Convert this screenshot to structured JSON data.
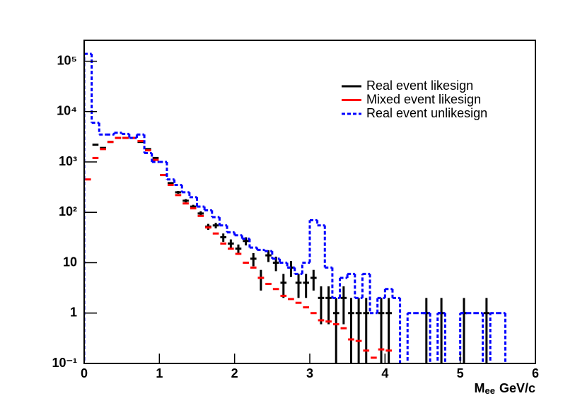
{
  "chart_data": {
    "type": "histogram",
    "xlabel": [
      "M",
      "ee",
      "GeV/c"
    ],
    "bins": [
      0,
      0.1,
      0.2,
      0.3,
      0.4,
      0.5,
      0.6,
      0.7,
      0.8,
      0.9,
      1,
      1.1,
      1.2,
      1.3,
      1.4,
      1.5,
      1.6,
      1.7,
      1.8,
      1.9,
      2,
      2.1,
      2.2,
      2.3,
      2.4,
      2.5,
      2.6,
      2.7,
      2.8,
      2.9,
      3,
      3.1,
      3.2,
      3.3,
      3.4,
      3.5,
      3.6,
      3.7,
      3.8,
      3.9,
      4,
      4.1,
      4.2,
      4.3,
      4.4,
      4.5,
      4.6,
      4.7,
      4.8,
      4.9,
      5,
      5.1,
      5.2,
      5.3,
      5.4,
      5.5,
      5.6,
      5.7,
      5.8,
      5.9,
      6
    ],
    "xlim": [
      0,
      6
    ],
    "xticks": [
      0,
      1,
      2,
      3,
      4,
      5,
      6
    ],
    "ylim": [
      0.1,
      260000
    ],
    "log_y": true,
    "yticks": [
      {
        "value": 0.1,
        "label": "10⁻¹"
      },
      1,
      10,
      {
        "value": 100,
        "label": "10²"
      },
      {
        "value": 1000,
        "label": "10³"
      },
      {
        "value": 10000,
        "label": "10⁴"
      },
      {
        "value": 100000,
        "label": "10⁵"
      }
    ],
    "legend": "top-right",
    "series": [
      {
        "name": "Real event likesign",
        "color": "#000000",
        "style": "points",
        "values": [
          null,
          2200,
          1900,
          2500,
          3000,
          3000,
          3000,
          2500,
          1800,
          1200,
          550,
          380,
          250,
          170,
          130,
          95,
          52,
          55,
          32,
          24,
          19,
          27,
          12,
          5,
          14,
          10,
          4,
          8,
          4,
          4,
          5,
          2,
          2,
          1,
          2,
          1,
          1,
          1,
          null,
          1,
          1,
          null,
          null,
          null,
          null,
          1,
          null,
          1,
          null,
          null,
          1,
          null,
          null,
          1,
          null,
          null,
          null,
          null,
          null,
          null
        ],
        "errors": [
          null,
          47,
          44,
          50,
          55,
          55,
          55,
          50,
          42,
          35,
          23,
          19,
          16,
          13,
          11,
          10,
          7,
          7,
          6,
          5,
          4,
          5,
          3.5,
          2.2,
          3.7,
          3.2,
          2,
          2.8,
          2,
          2,
          2.2,
          1.4,
          1.4,
          1,
          1.4,
          1,
          1,
          1,
          null,
          1,
          1,
          null,
          null,
          null,
          null,
          1,
          null,
          1,
          null,
          null,
          1,
          null,
          null,
          1,
          null,
          null,
          null,
          null,
          null,
          null
        ]
      },
      {
        "name": "Mixed event likesign",
        "color": "#ff0000",
        "style": "points",
        "values": [
          450,
          1200,
          1800,
          2500,
          3000,
          3000,
          3000,
          2600,
          1700,
          1100,
          550,
          350,
          220,
          150,
          120,
          85,
          50,
          38,
          24,
          19,
          15,
          10,
          8,
          5,
          3.8,
          3,
          2.2,
          1.9,
          1.6,
          1.3,
          1.0,
          0.72,
          0.68,
          0.6,
          0.5,
          0.3,
          0.28,
          0.18,
          0.13,
          0.19,
          0.18,
          null,
          null,
          null,
          null,
          null,
          null,
          null,
          null,
          null,
          null,
          null,
          null,
          null,
          null,
          null,
          null,
          null,
          null,
          null
        ]
      },
      {
        "name": "Real event unlikesign",
        "color": "#0000ff",
        "style": "step",
        "values": [
          140000,
          6000,
          3500,
          3500,
          3800,
          3600,
          3000,
          3500,
          1500,
          1000,
          1000,
          450,
          350,
          250,
          200,
          130,
          110,
          80,
          55,
          40,
          35,
          30,
          20,
          18,
          17,
          12,
          10,
          8,
          6,
          10,
          70,
          55,
          8,
          2,
          5,
          6,
          2,
          6,
          1,
          2,
          3,
          2,
          null,
          1,
          1,
          1,
          null,
          1,
          null,
          null,
          1,
          1,
          1,
          null,
          1,
          1,
          null,
          null,
          null,
          null
        ]
      }
    ]
  }
}
